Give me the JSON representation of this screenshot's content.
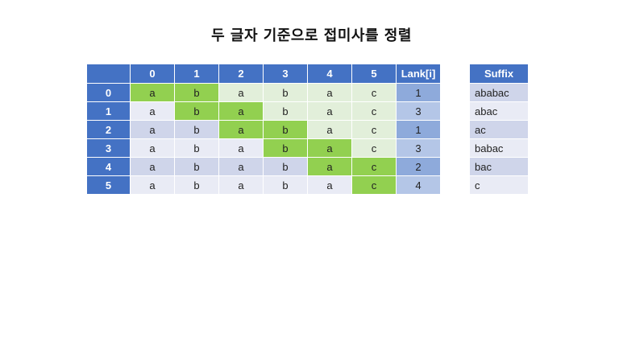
{
  "title": "두 글자 기준으로 접미사를 정렬",
  "headers": [
    "",
    "0",
    "1",
    "2",
    "3",
    "4",
    "5",
    "Lank[i]"
  ],
  "rows": [
    {
      "index": "0",
      "cells": [
        "a",
        "b",
        "a",
        "b",
        "a",
        "c"
      ],
      "lank": "1"
    },
    {
      "index": "1",
      "cells": [
        "a",
        "b",
        "a",
        "b",
        "a",
        "c"
      ],
      "lank": "3"
    },
    {
      "index": "2",
      "cells": [
        "a",
        "b",
        "a",
        "b",
        "a",
        "c"
      ],
      "lank": "1"
    },
    {
      "index": "3",
      "cells": [
        "a",
        "b",
        "a",
        "b",
        "a",
        "c"
      ],
      "lank": "3"
    },
    {
      "index": "4",
      "cells": [
        "a",
        "b",
        "a",
        "b",
        "a",
        "c"
      ],
      "lank": "2"
    },
    {
      "index": "5",
      "cells": [
        "a",
        "b",
        "a",
        "b",
        "a",
        "c"
      ],
      "lank": "4"
    }
  ],
  "highlight": [
    [
      0,
      1
    ],
    [
      1,
      2
    ],
    [
      2,
      3
    ],
    [
      3,
      4
    ],
    [
      4,
      5
    ],
    [
      5
    ]
  ],
  "suffix_header": "Suffix",
  "suffixes": [
    "ababac",
    "abac",
    "ac",
    "babac",
    "bac",
    "c"
  ],
  "colors": {
    "header_blue": "#4472c4",
    "highlight_green": "#92d050",
    "dim_green": "#e2efda",
    "row_band_dark": "#cfd5ea",
    "row_band_light": "#e9ebf5",
    "lank_col_dark": "#8eaadb",
    "lank_col_light": "#b4c6e7"
  }
}
